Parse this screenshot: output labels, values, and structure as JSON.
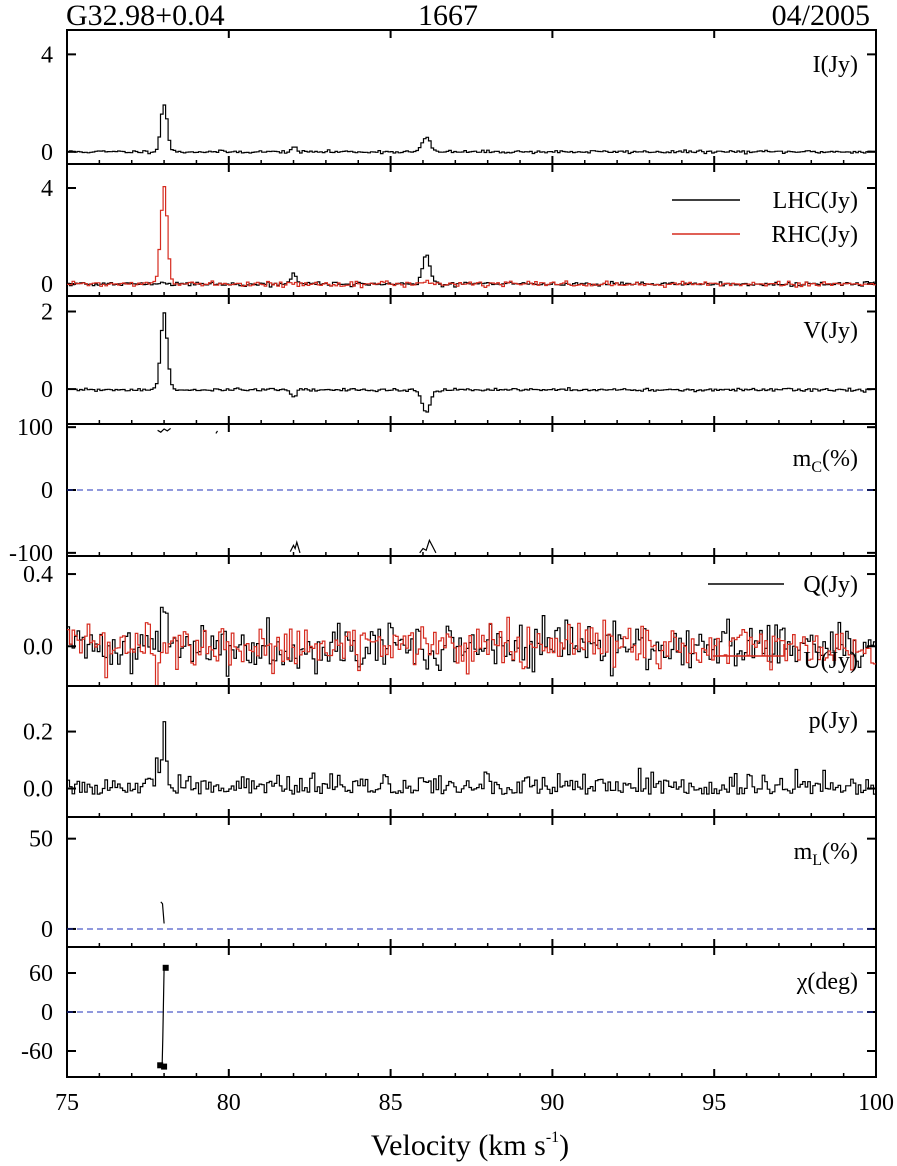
{
  "header": {
    "source": "G32.98+0.04",
    "frequency": "1667",
    "date": "04/2005"
  },
  "chart_data": {
    "type": "line",
    "layout": "stacked panels sharing x axis",
    "xlabel": "Velocity (km s",
    "xlabel_sup": "-1",
    "xlabel_end": ")",
    "xlim": [
      75,
      100
    ],
    "xticks": [
      75,
      80,
      85,
      90,
      95,
      100
    ],
    "colors": {
      "black": "#000000",
      "red": "#d62b1f",
      "zero_line": "#2233bb"
    },
    "panels": [
      {
        "id": "I",
        "label": "I(Jy)",
        "ylim": [
          -0.5,
          5
        ],
        "yticks": [
          {
            "v": 0,
            "t": "0"
          },
          {
            "v": 4,
            "t": "4"
          }
        ],
        "style": "step",
        "series": [
          {
            "color": "black",
            "noise": 0.03,
            "seed": 11,
            "base": [
              {
                "c": 78.0,
                "a": 1.95,
                "w": 0.1
              },
              {
                "c": 82.0,
                "a": 0.18,
                "w": 0.08
              },
              {
                "c": 86.1,
                "a": 0.6,
                "w": 0.12
              }
            ]
          }
        ]
      },
      {
        "id": "LR",
        "label_lines": [
          "LHC(Jy)",
          "RHC(Jy)"
        ],
        "ylim": [
          -0.5,
          5
        ],
        "yticks": [
          {
            "v": 0,
            "t": "0"
          },
          {
            "v": 4,
            "t": "4"
          }
        ],
        "style": "step",
        "series": [
          {
            "name": "LHC(Jy)",
            "color": "black",
            "noise": 0.04,
            "seed": 21,
            "base": [
              {
                "c": 78.0,
                "a": 0.05,
                "w": 0.1
              },
              {
                "c": 82.0,
                "a": 0.45,
                "w": 0.08
              },
              {
                "c": 86.1,
                "a": 1.2,
                "w": 0.12
              }
            ]
          },
          {
            "name": "RHC(Jy)",
            "color": "red",
            "noise": 0.05,
            "seed": 22,
            "base": [
              {
                "c": 78.0,
                "a": 4.0,
                "w": 0.1
              },
              {
                "c": 86.1,
                "a": 0.1,
                "w": 0.12
              }
            ]
          }
        ]
      },
      {
        "id": "V",
        "label": "V(Jy)",
        "ylim": [
          -0.9,
          2.4
        ],
        "yticks": [
          {
            "v": 0,
            "t": "0"
          },
          {
            "v": 2,
            "t": "2"
          }
        ],
        "style": "step",
        "series": [
          {
            "color": "black",
            "noise": 0.02,
            "seed": 31,
            "offset": -0.02,
            "base": [
              {
                "c": 78.0,
                "a": 1.98,
                "w": 0.1
              },
              {
                "c": 82.0,
                "a": -0.18,
                "w": 0.08
              },
              {
                "c": 86.1,
                "a": -0.6,
                "w": 0.12
              }
            ]
          }
        ]
      },
      {
        "id": "mc",
        "label": "m",
        "label_sub": "C",
        "label_end": "(%)",
        "ylim": [
          -105,
          105
        ],
        "yticks": [
          {
            "v": 100,
            "t": "100"
          },
          {
            "v": 0,
            "t": "0"
          },
          {
            "v": -100,
            "t": "-100"
          }
        ],
        "zero_line": true,
        "fragments": [
          {
            "x": [
              77.8,
              77.9,
              78.0,
              78.1,
              78.2
            ],
            "y": [
              95,
              92,
              97,
              94,
              98
            ]
          },
          {
            "x": [
              79.6,
              79.65
            ],
            "y": [
              90,
              94
            ]
          },
          {
            "x": [
              81.9,
              82.0,
              82.05,
              82.1,
              82.2
            ],
            "y": [
              -98,
              -88,
              -93,
              -83,
              -100
            ]
          },
          {
            "x": [
              85.9,
              86.0,
              86.1,
              86.2,
              86.3,
              86.4
            ],
            "y": [
              -100,
              -93,
              -96,
              -80,
              -90,
              -100
            ]
          }
        ]
      },
      {
        "id": "QU",
        "label_top": "Q(Jy)",
        "label_bottom": "U(Jy)",
        "ylim": [
          -0.22,
          0.5
        ],
        "yticks": [
          {
            "v": 0.4,
            "t": "0.4"
          },
          {
            "v": 0.0,
            "t": "0.0"
          }
        ],
        "style": "step",
        "series": [
          {
            "name": "Q(Jy)",
            "color": "black",
            "noise": 0.065,
            "seed": 41,
            "base": [
              {
                "c": 78.0,
                "a": 0.3,
                "w": 0.06
              },
              {
                "c": 86.1,
                "a": -0.12,
                "w": 0.08
              }
            ]
          },
          {
            "name": "U(Jy)",
            "color": "red",
            "noise": 0.065,
            "seed": 42,
            "base": [
              {
                "c": 77.8,
                "a": -0.14,
                "w": 0.06
              }
            ]
          }
        ]
      },
      {
        "id": "p",
        "label": "p(Jy)",
        "ylim": [
          -0.1,
          0.36
        ],
        "yticks": [
          {
            "v": 0.2,
            "t": "0.2"
          },
          {
            "v": 0.0,
            "t": "0.0"
          }
        ],
        "style": "step",
        "series": [
          {
            "color": "black",
            "noise": 0.04,
            "abs_shift": 0.02,
            "seed": 51,
            "base": [
              {
                "c": 78.0,
                "a": 0.23,
                "w": 0.06
              },
              {
                "c": 77.8,
                "a": 0.1,
                "w": 0.05
              }
            ]
          }
        ]
      },
      {
        "id": "mL",
        "label": "m",
        "label_sub": "L",
        "label_end": "(%)",
        "ylim": [
          -10,
          62
        ],
        "yticks": [
          {
            "v": 50,
            "t": "50"
          },
          {
            "v": 0,
            "t": "0"
          }
        ],
        "zero_line": true,
        "fragments": [
          {
            "x": [
              77.9,
              77.95,
              78.0
            ],
            "y": [
              15,
              14,
              3
            ]
          }
        ]
      },
      {
        "id": "chi",
        "label": "χ(deg)",
        "ylim": [
          -100,
          100
        ],
        "yticks": [
          {
            "v": 60,
            "t": "60"
          },
          {
            "v": 0,
            "t": "0"
          },
          {
            "v": -60,
            "t": "-60"
          }
        ],
        "zero_line": true,
        "fragments": [
          {
            "x": [
              78.0,
              77.98,
              77.96,
              77.94
            ],
            "y": [
              68,
              10,
              -40,
              -85
            ]
          }
        ],
        "markers": [
          {
            "x": 78.05,
            "y": 68
          },
          {
            "x": 77.88,
            "y": -82
          },
          {
            "x": 78.0,
            "y": -84
          }
        ]
      }
    ]
  }
}
